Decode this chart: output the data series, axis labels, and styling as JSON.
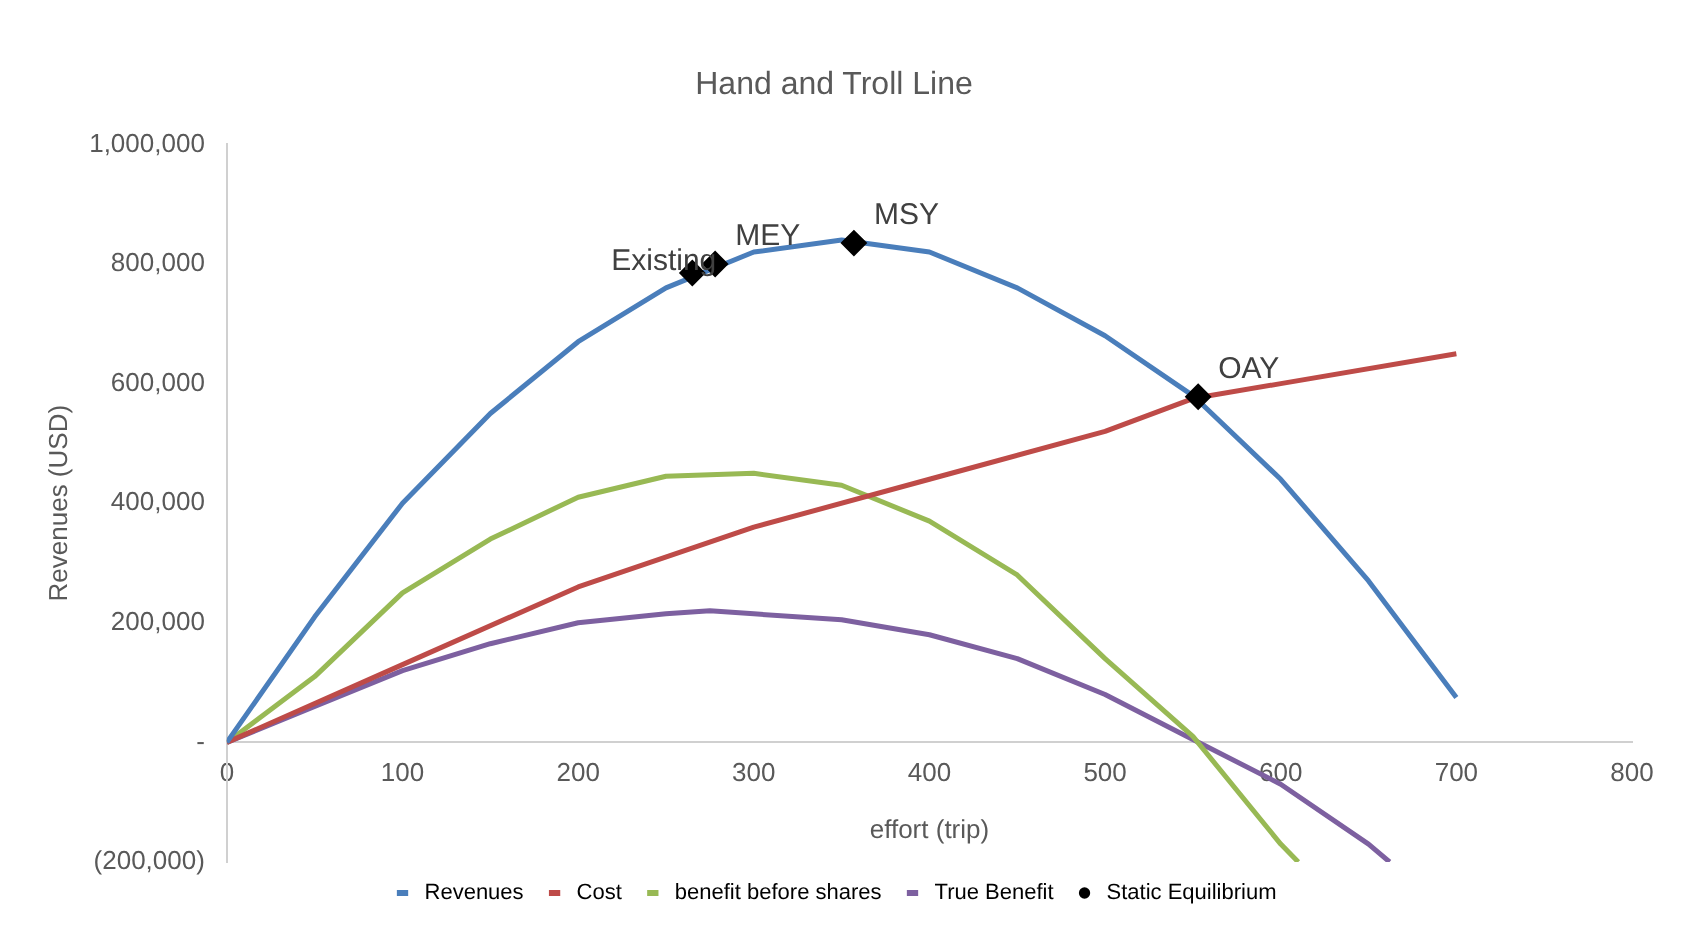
{
  "chart_data": {
    "type": "line",
    "title": "Hand and Troll Line",
    "xlabel": "effort (trip)",
    "ylabel": "Revenues (USD)",
    "xlim": [
      0,
      800
    ],
    "xticks": [
      0,
      100,
      200,
      300,
      400,
      500,
      600,
      700,
      800
    ],
    "ylim": [
      -200000,
      1000000
    ],
    "yticks": [
      {
        "value": -200000,
        "label": "(200,000)"
      },
      {
        "value": 0,
        "label": "-"
      },
      {
        "value": 200000,
        "label": "200,000"
      },
      {
        "value": 400000,
        "label": "400,000"
      },
      {
        "value": 600000,
        "label": "600,000"
      },
      {
        "value": 800000,
        "label": "800,000"
      },
      {
        "value": 1000000,
        "label": "1,000,000"
      }
    ],
    "grid": false,
    "legend": "bottom",
    "marker": "none",
    "line_style": "solid",
    "series": [
      {
        "name": "Revenues",
        "color": "#4a7ebb",
        "x": [
          0,
          50,
          100,
          150,
          200,
          250,
          300,
          350,
          400,
          450,
          500,
          550,
          600,
          650,
          700
        ],
        "values": [
          0,
          210000,
          400000,
          550000,
          670000,
          760000,
          820000,
          840000,
          820000,
          760000,
          680000,
          580000,
          440000,
          270000,
          75000
        ]
      },
      {
        "name": "Cost",
        "color": "#be4b48",
        "x": [
          0,
          100,
          200,
          300,
          400,
          500,
          550,
          600,
          700
        ],
        "values": [
          0,
          130000,
          260000,
          360000,
          440000,
          520000,
          575000,
          600000,
          650000
        ]
      },
      {
        "name": "benefit before shares",
        "color": "#98b954",
        "x": [
          0,
          50,
          100,
          150,
          200,
          250,
          300,
          350,
          400,
          450,
          500,
          550,
          600,
          610
        ],
        "values": [
          0,
          110000,
          250000,
          340000,
          410000,
          445000,
          450000,
          430000,
          370000,
          280000,
          140000,
          10000,
          -170000,
          -200000
        ]
      },
      {
        "name": "True Benefit",
        "color": "#7d60a0",
        "x": [
          0,
          50,
          100,
          150,
          200,
          250,
          275,
          300,
          350,
          400,
          450,
          500,
          550,
          600,
          650,
          662
        ],
        "values": [
          0,
          60000,
          120000,
          165000,
          200000,
          215000,
          220000,
          215000,
          205000,
          180000,
          140000,
          80000,
          5000,
          -70000,
          -170000,
          -200000
        ]
      },
      {
        "name": "Static Equilibrium",
        "type": "scatter",
        "marker": "diamond",
        "color": "#000000",
        "x": [
          265,
          278,
          357,
          553
        ],
        "values": [
          785000,
          800000,
          835000,
          578000
        ]
      }
    ],
    "annotations": [
      {
        "text": "Existing",
        "x": 265,
        "y": 785000
      },
      {
        "text": "MEY",
        "x": 278,
        "y": 800000
      },
      {
        "text": "MSY",
        "x": 357,
        "y": 835000
      },
      {
        "text": "OAY",
        "x": 553,
        "y": 578000
      }
    ]
  }
}
